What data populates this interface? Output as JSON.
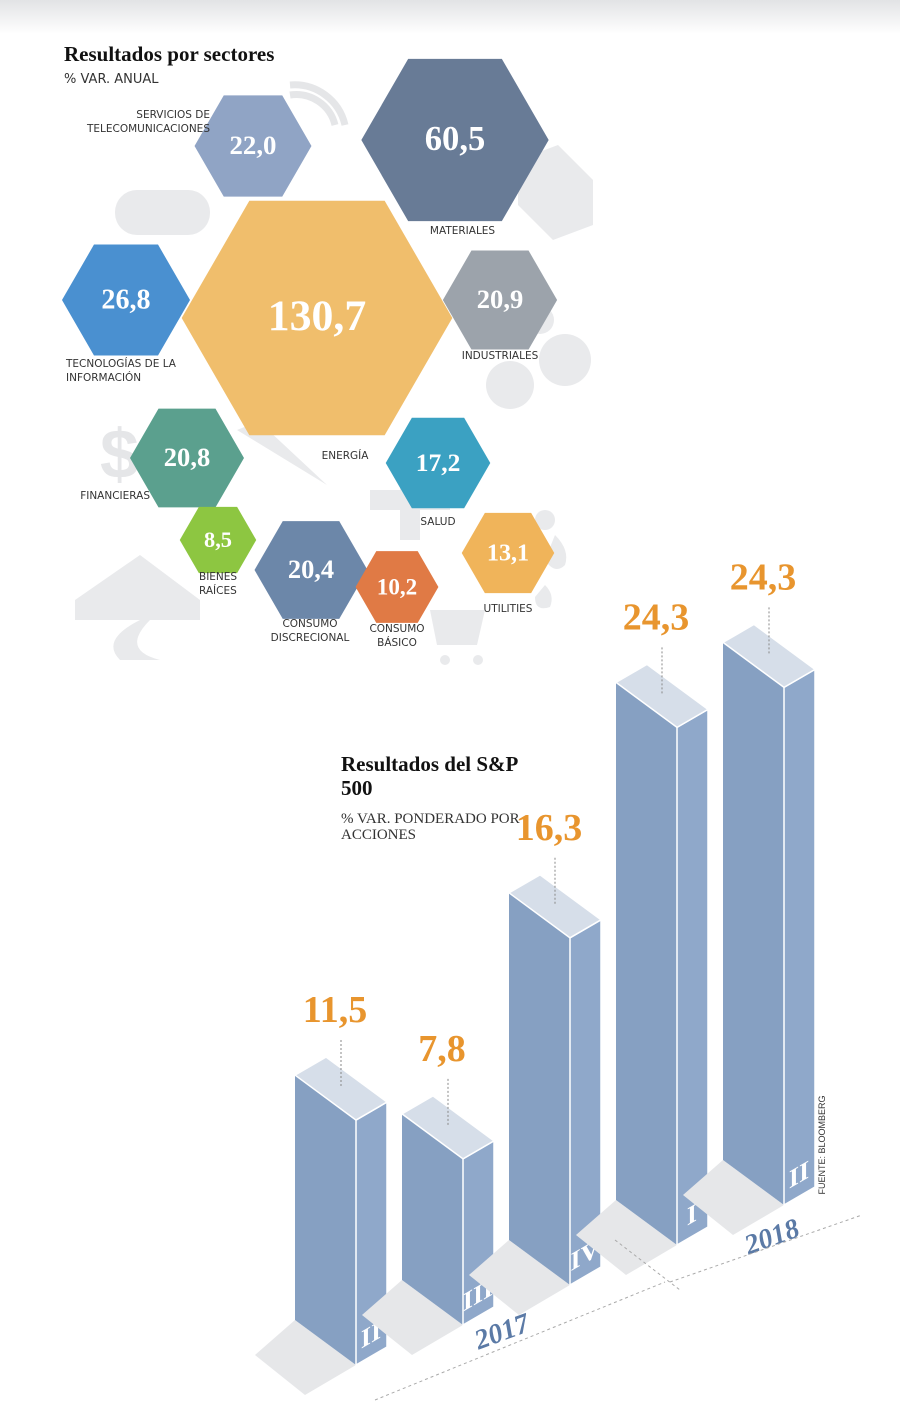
{
  "chart_data": [
    {
      "type": "hexagon",
      "title": "Resultados por sectores",
      "subtitle": "% VAR. ANUAL",
      "categories": [
        "SERVICIOS DE TELECOMUNICACIONES",
        "MATERIALES",
        "TECNOLOGÍAS DE LA INFORMACIÓN",
        "ENERGÍA",
        "INDUSTRIALES",
        "FINANCIERAS",
        "SALUD",
        "BIENES RAÍCES",
        "CONSUMO DISCRECIONAL",
        "CONSUMO BÁSICO",
        "UTILITIES"
      ],
      "values": [
        22.0,
        60.5,
        26.8,
        130.7,
        20.9,
        20.8,
        17.2,
        8.5,
        20.4,
        10.2,
        13.1
      ],
      "value_labels": [
        "22,0",
        "60,5",
        "26,8",
        "130,7",
        "20,9",
        "20,8",
        "17,2",
        "8,5",
        "20,4",
        "10,2",
        "13,1"
      ],
      "colors": [
        "#90a4c5",
        "#687b96",
        "#4a90d0",
        "#f0be6c",
        "#9ca3ab",
        "#5ba08e",
        "#3ba1c2",
        "#8dc641",
        "#6c87a9",
        "#e07a45",
        "#f0b45a"
      ]
    },
    {
      "type": "bar3d",
      "title": "Resultados del S&P 500",
      "subtitle": "% VAR. PONDERADO POR ACCIONES",
      "source": "FUENTE: BLOOMBERG",
      "color": "#86a0c2",
      "label_color": "#e8952e",
      "groups": [
        {
          "label": "2017",
          "categories": [
            "II",
            "III",
            "IV"
          ],
          "values": [
            11.5,
            7.8,
            16.3
          ],
          "value_labels": [
            "11,5",
            "7,8",
            "16,3"
          ]
        },
        {
          "label": "2018",
          "categories": [
            "I",
            "II"
          ],
          "values": [
            24.3,
            24.3
          ],
          "value_labels": [
            "24,3",
            "24,3"
          ]
        }
      ]
    }
  ]
}
